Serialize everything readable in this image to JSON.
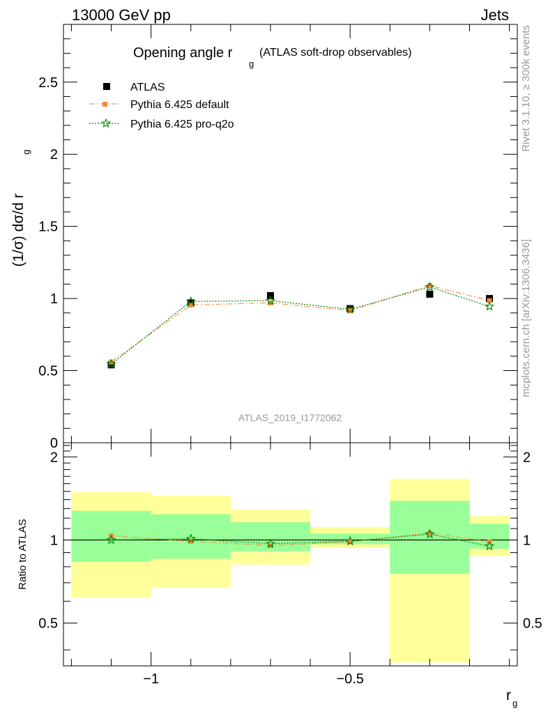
{
  "header": {
    "left": "13000 GeV pp",
    "right": "Jets"
  },
  "side_text": {
    "rivet": "Rivet 3.1.10, ≥ 300k events",
    "mcplots": "mcplots.cern.ch [arXiv:1306.3436]"
  },
  "chart_data": {
    "type": "scatter",
    "title_main": "Opening angle r",
    "title_sub": "g",
    "title_extra": "(ATLAS soft-drop observables)",
    "watermark": "ATLAS_2019_I1772062",
    "xlabel": "r",
    "xlabel_sub": "g",
    "ylabel": "(1/σ) dσ/d r",
    "ylabel_sub": "g",
    "ratio_ylabel": "Ratio to ATLAS",
    "xlim": [
      -1.22,
      -0.08
    ],
    "ylim": [
      0,
      2.9
    ],
    "ratio_ylim": [
      0.35,
      2.25
    ],
    "x_ticks": [
      -1,
      -0.5
    ],
    "x_tick_labels": [
      "−1",
      "−0.5"
    ],
    "y_ticks": [
      0,
      0.5,
      1,
      1.5,
      2,
      2.5
    ],
    "y_tick_labels": [
      "0",
      "0.5",
      "1",
      "1.5",
      "2",
      "2.5"
    ],
    "ratio_ticks": [
      0.5,
      1,
      2
    ],
    "ratio_tick_labels": [
      "0.5",
      "1",
      "2"
    ],
    "bins": [
      [
        -1.2,
        -1.0
      ],
      [
        -1.0,
        -0.8
      ],
      [
        -0.8,
        -0.6
      ],
      [
        -0.6,
        -0.4
      ],
      [
        -0.4,
        -0.2
      ],
      [
        -0.2,
        -0.1
      ]
    ],
    "x": [
      -1.1,
      -0.9,
      -0.7,
      -0.5,
      -0.3,
      -0.15
    ],
    "series": [
      {
        "name": "ATLAS",
        "values": [
          0.54,
          0.97,
          1.02,
          0.93,
          1.03,
          1.0
        ]
      },
      {
        "name": "Pythia 6.425 default",
        "values": [
          0.56,
          0.955,
          0.97,
          0.915,
          1.09,
          0.985
        ]
      },
      {
        "name": "Pythia 6.425 pro-q2o",
        "values": [
          0.545,
          0.98,
          0.985,
          0.925,
          1.08,
          0.945
        ]
      }
    ],
    "ratio": {
      "default": [
        1.035,
        0.99,
        0.955,
        0.985,
        1.06,
        0.985
      ],
      "pro_q2o": [
        1.0,
        1.01,
        0.97,
        0.99,
        1.05,
        0.95
      ]
    },
    "bands": {
      "green": [
        [
          0.835,
          1.275
        ],
        [
          0.855,
          1.24
        ],
        [
          0.91,
          1.16
        ],
        [
          0.965,
          1.055
        ],
        [
          0.755,
          1.385
        ],
        [
          0.93,
          1.145
        ]
      ],
      "yellow": [
        [
          0.62,
          1.49
        ],
        [
          0.675,
          1.445
        ],
        [
          0.815,
          1.29
        ],
        [
          0.935,
          1.115
        ],
        [
          0.36,
          1.665
        ],
        [
          0.875,
          1.22
        ]
      ]
    },
    "colors": {
      "atlas": "#000000",
      "default": "#f58a33",
      "pro_q2o": "#008000",
      "band_green": "#99ff99",
      "band_yellow": "#ffff99"
    },
    "grid": false,
    "legend_position": "top-left"
  }
}
